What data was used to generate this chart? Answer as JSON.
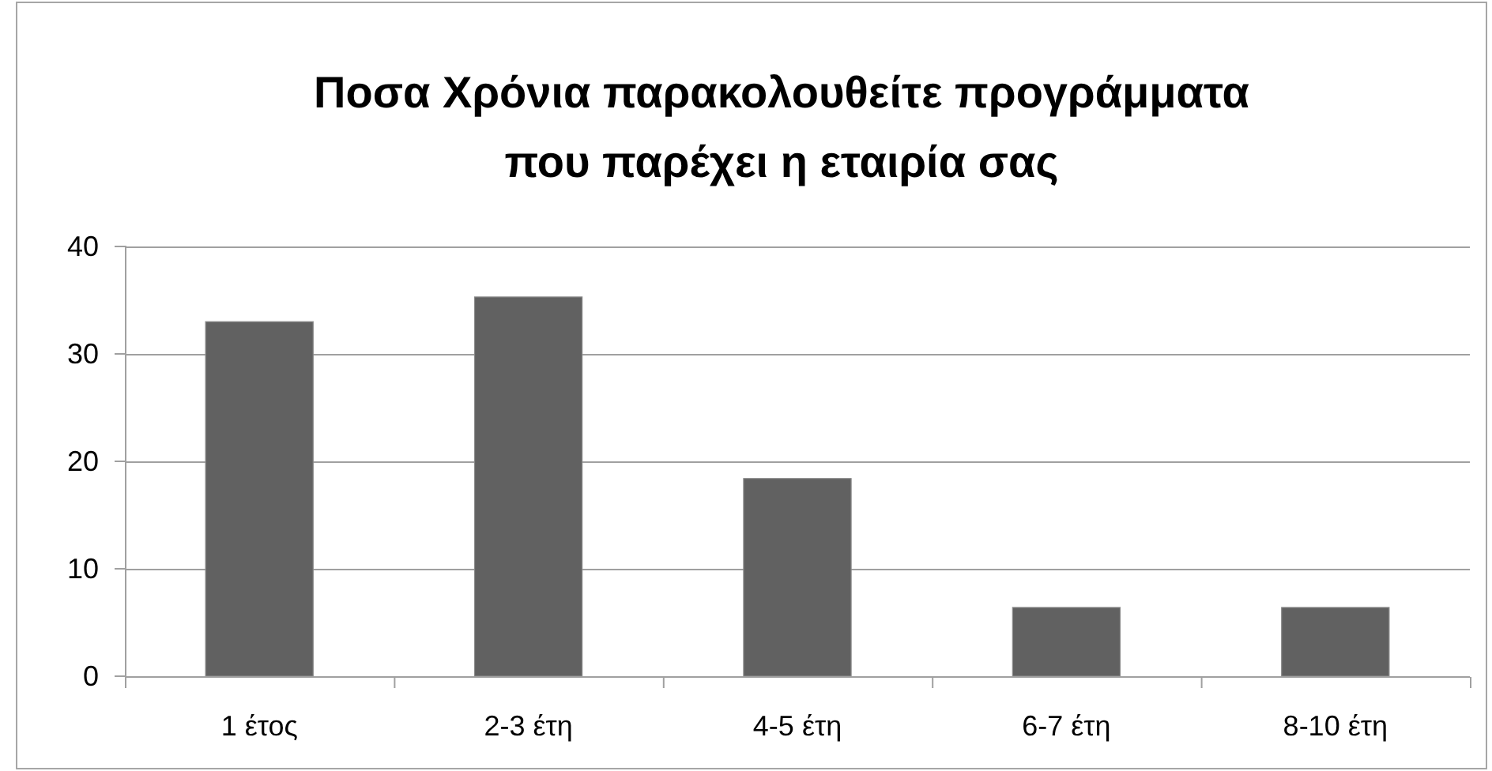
{
  "chart_data": {
    "type": "bar",
    "title": "Ποσα Χρόνια παρακολουθείτε προγράμματα\nπου παρέχει η εταιρία σας",
    "categories": [
      "1 έτος",
      "2-3 έτη",
      "4-5 έτη",
      "6-7 έτη",
      "8-10 έτη"
    ],
    "values": [
      33,
      35.3,
      18.4,
      6.4,
      6.4
    ],
    "color": "#616161",
    "ylim": [
      0,
      40
    ],
    "yticks": [
      0,
      10,
      20,
      30,
      40
    ],
    "grid": "y"
  }
}
